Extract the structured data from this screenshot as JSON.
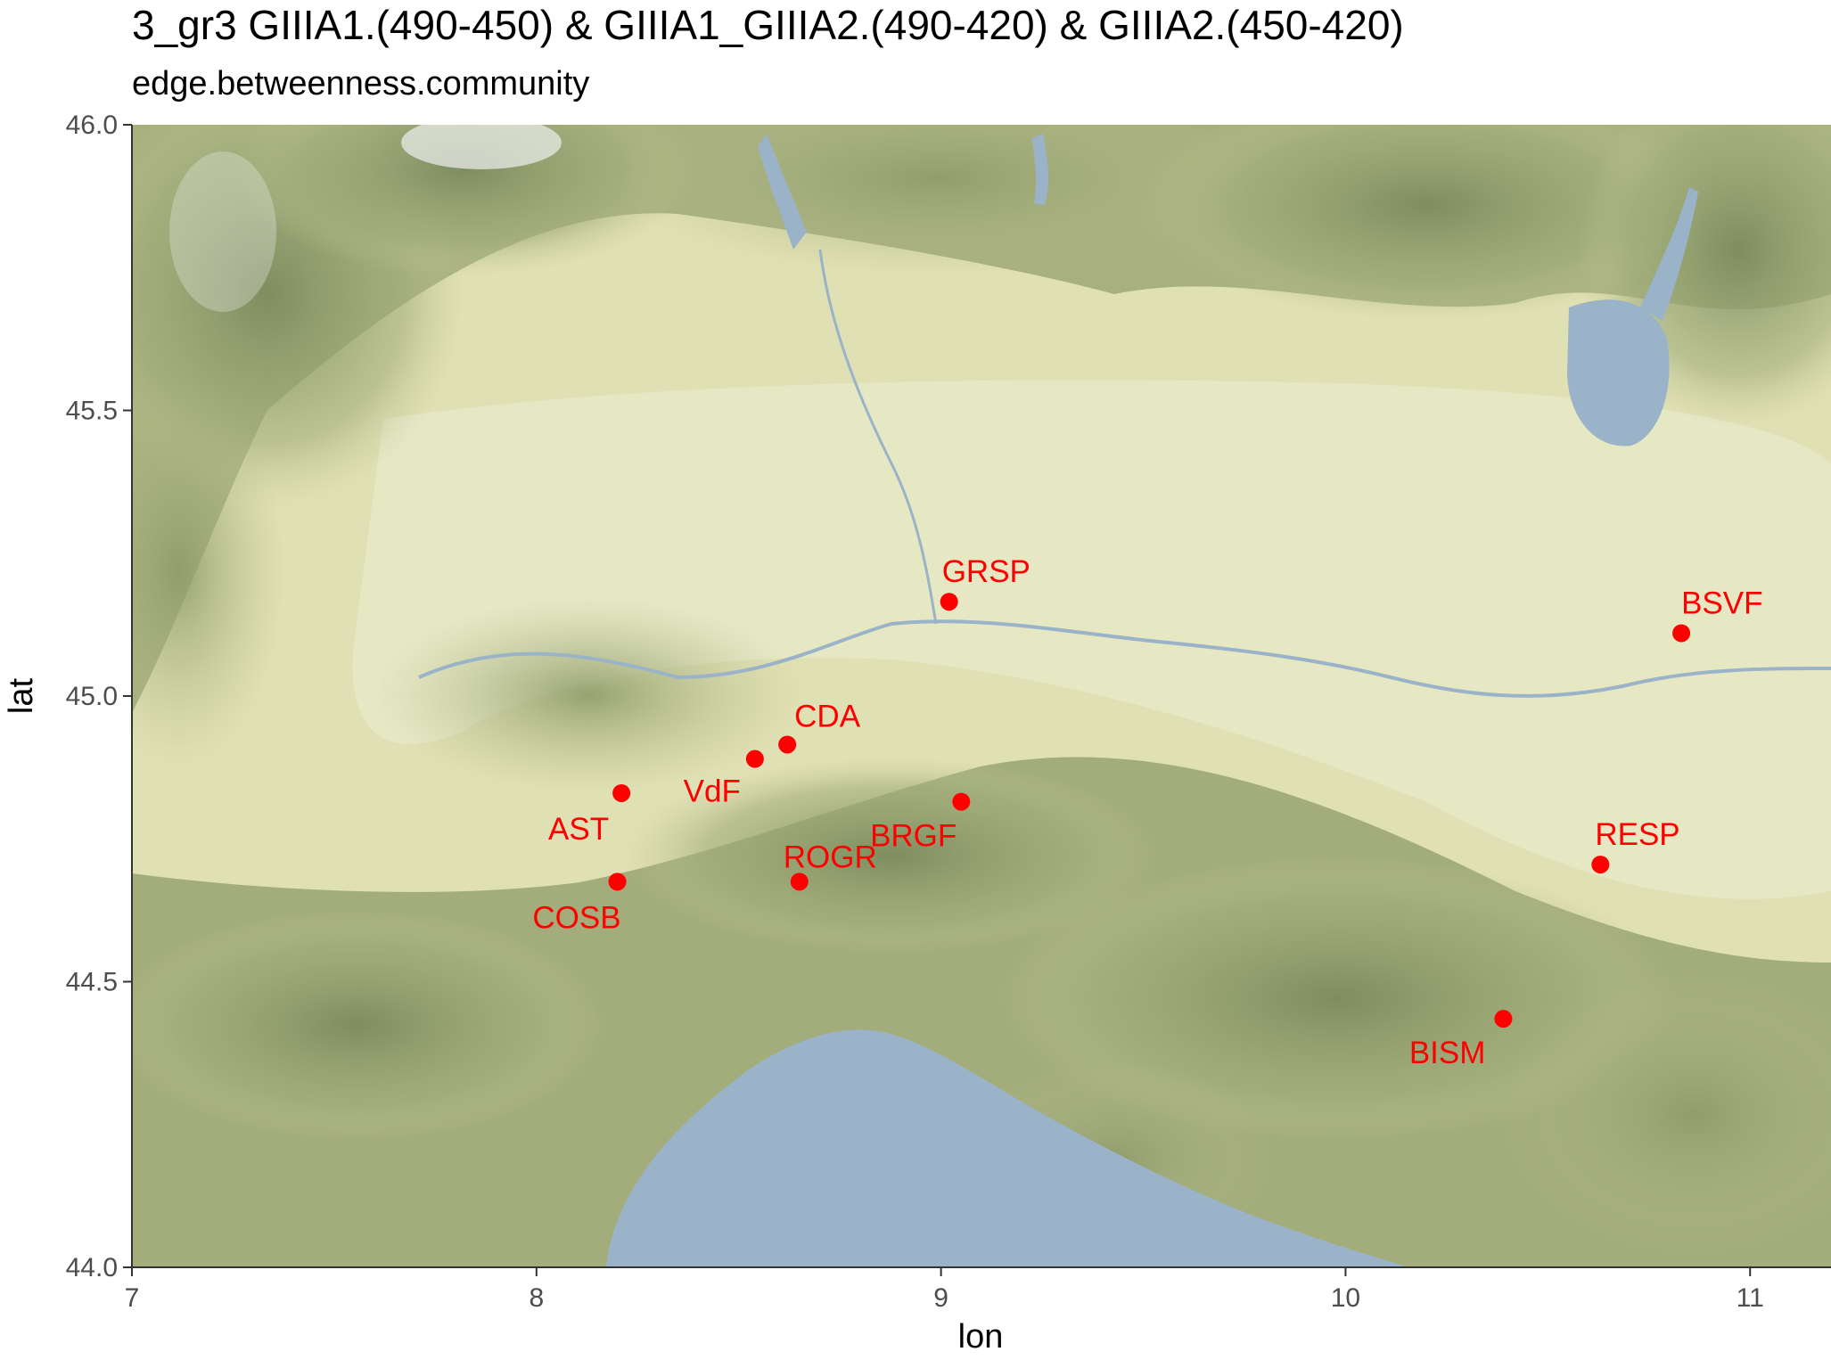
{
  "title": "3_gr3 GIIIA1.(490-450) & GIIIA1_GIIIA2.(490-420) & GIIIA2.(450-420)",
  "subtitle": "edge.betweenness.community",
  "chart_data": {
    "type": "scatter",
    "xlabel": "lon",
    "ylabel": "lat",
    "xlim": [
      7,
      11.2
    ],
    "ylim": [
      44,
      46
    ],
    "x_ticks": [
      7,
      8,
      9,
      10,
      11
    ],
    "y_ticks": [
      44.0,
      44.5,
      45.0,
      45.5,
      46.0
    ],
    "x_tick_labels": [
      "7",
      "8",
      "9",
      "10",
      "11"
    ],
    "y_tick_labels": [
      "44.0",
      "44.5",
      "45.0",
      "45.5",
      "46.0"
    ],
    "background": "terrain basemap of northern Italy with the Ligurian Sea",
    "point_color": "#ff0000",
    "points": [
      {
        "label": "GRSP",
        "lon": 9.02,
        "lat": 45.165
      },
      {
        "label": "BSVF",
        "lon": 10.83,
        "lat": 45.11
      },
      {
        "label": "CDA",
        "lon": 8.62,
        "lat": 44.915
      },
      {
        "label": "VdF",
        "lon": 8.54,
        "lat": 44.89
      },
      {
        "label": "AST",
        "lon": 8.21,
        "lat": 44.83
      },
      {
        "label": "BRGF",
        "lon": 9.05,
        "lat": 44.815
      },
      {
        "label": "RESP",
        "lon": 10.63,
        "lat": 44.705
      },
      {
        "label": "ROGR",
        "lon": 8.65,
        "lat": 44.675
      },
      {
        "label": "COSB",
        "lon": 8.2,
        "lat": 44.675
      },
      {
        "label": "BISM",
        "lon": 10.39,
        "lat": 44.435
      }
    ]
  }
}
